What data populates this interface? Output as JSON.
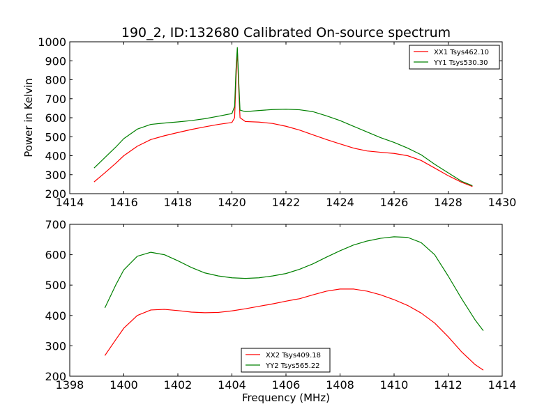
{
  "chart_data": [
    {
      "type": "line",
      "title": "190_2, ID:132680 Calibrated On-source spectrum",
      "xlabel": "",
      "ylabel": "Power in Kelvin",
      "xlim": [
        1414,
        1430
      ],
      "ylim": [
        200,
        1000
      ],
      "xticks": [
        1414,
        1416,
        1418,
        1420,
        1422,
        1424,
        1426,
        1428,
        1430
      ],
      "yticks": [
        200,
        300,
        400,
        500,
        600,
        700,
        800,
        900,
        1000
      ],
      "legend_position": "top-right",
      "series": [
        {
          "name": "XX1 Tsys462.10",
          "color": "#ff0000",
          "x": [
            1414.9,
            1415.3,
            1415.7,
            1416.0,
            1416.5,
            1417.0,
            1417.5,
            1418.0,
            1418.5,
            1419.0,
            1419.5,
            1420.0,
            1420.1,
            1420.15,
            1420.2,
            1420.25,
            1420.3,
            1420.5,
            1421.0,
            1421.5,
            1422.0,
            1422.5,
            1423.0,
            1423.5,
            1424.0,
            1424.5,
            1425.0,
            1425.5,
            1426.0,
            1426.5,
            1427.0,
            1427.5,
            1428.0,
            1428.5,
            1428.9
          ],
          "y": [
            262,
            310,
            360,
            400,
            450,
            485,
            505,
            522,
            538,
            552,
            565,
            575,
            600,
            800,
            960,
            760,
            600,
            580,
            577,
            570,
            555,
            535,
            510,
            485,
            462,
            440,
            425,
            418,
            412,
            400,
            375,
            335,
            295,
            260,
            238
          ]
        },
        {
          "name": "YY1 Tsys530.30",
          "color": "#008000",
          "x": [
            1414.9,
            1415.3,
            1415.7,
            1416.0,
            1416.5,
            1417.0,
            1417.5,
            1418.0,
            1418.5,
            1419.0,
            1419.5,
            1420.0,
            1420.1,
            1420.15,
            1420.2,
            1420.25,
            1420.3,
            1420.5,
            1421.0,
            1421.5,
            1422.0,
            1422.5,
            1423.0,
            1423.5,
            1424.0,
            1424.5,
            1425.0,
            1425.5,
            1426.0,
            1426.5,
            1427.0,
            1427.5,
            1428.0,
            1428.5,
            1428.9
          ],
          "y": [
            335,
            390,
            445,
            490,
            540,
            565,
            572,
            578,
            585,
            595,
            608,
            622,
            660,
            850,
            970,
            800,
            640,
            632,
            638,
            643,
            645,
            642,
            632,
            610,
            585,
            555,
            525,
            495,
            470,
            440,
            405,
            355,
            310,
            265,
            242
          ]
        }
      ]
    },
    {
      "type": "line",
      "title": "",
      "xlabel": "Frequency (MHz)",
      "ylabel": "",
      "xlim": [
        1398,
        1414
      ],
      "ylim": [
        200,
        700
      ],
      "xticks": [
        1398,
        1400,
        1402,
        1404,
        1406,
        1408,
        1410,
        1412,
        1414
      ],
      "yticks": [
        200,
        300,
        400,
        500,
        600,
        700
      ],
      "legend_position": "bottom-center",
      "series": [
        {
          "name": "XX2 Tsys409.18",
          "color": "#ff0000",
          "x": [
            1399.3,
            1399.7,
            1400.0,
            1400.5,
            1401.0,
            1401.5,
            1402.0,
            1402.5,
            1403.0,
            1403.5,
            1404.0,
            1404.5,
            1405.0,
            1405.5,
            1406.0,
            1406.3,
            1406.5,
            1407.0,
            1407.5,
            1408.0,
            1408.5,
            1409.0,
            1409.5,
            1410.0,
            1410.5,
            1411.0,
            1411.5,
            1412.0,
            1412.5,
            1413.0,
            1413.3
          ],
          "y": [
            268,
            320,
            358,
            400,
            418,
            420,
            416,
            411,
            409,
            410,
            415,
            422,
            430,
            438,
            447,
            452,
            455,
            468,
            480,
            487,
            487,
            480,
            468,
            452,
            433,
            408,
            375,
            330,
            280,
            238,
            220
          ]
        },
        {
          "name": "YY2 Tsys565.22",
          "color": "#008000",
          "x": [
            1399.3,
            1399.7,
            1400.0,
            1400.5,
            1401.0,
            1401.5,
            1402.0,
            1402.5,
            1403.0,
            1403.5,
            1404.0,
            1404.5,
            1405.0,
            1405.5,
            1406.0,
            1406.5,
            1407.0,
            1407.5,
            1408.0,
            1408.5,
            1409.0,
            1409.5,
            1410.0,
            1410.5,
            1411.0,
            1411.5,
            1412.0,
            1412.5,
            1413.0,
            1413.3
          ],
          "y": [
            425,
            500,
            550,
            595,
            608,
            600,
            580,
            558,
            540,
            530,
            524,
            522,
            524,
            530,
            538,
            552,
            570,
            592,
            613,
            632,
            645,
            654,
            659,
            657,
            640,
            600,
            530,
            455,
            385,
            350
          ]
        }
      ]
    }
  ]
}
